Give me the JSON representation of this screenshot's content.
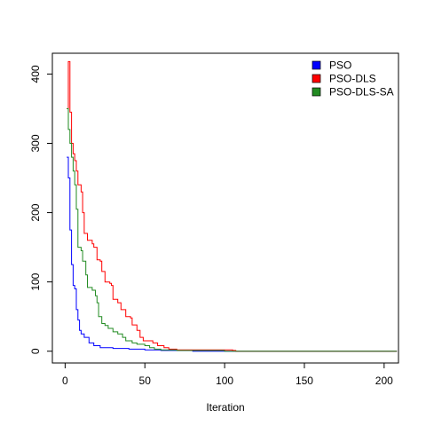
{
  "chart_data": {
    "type": "line",
    "title": "",
    "xlabel": "Iteration",
    "ylabel": "",
    "xlim": [
      -8,
      209
    ],
    "ylim": [
      -17,
      430
    ],
    "xticks": [
      0,
      50,
      100,
      150,
      200
    ],
    "yticks": [
      0,
      100,
      200,
      300,
      400
    ],
    "grid": false,
    "legend_position": "top-right",
    "series": [
      {
        "name": "PSO",
        "color": "#0000ff",
        "points": [
          [
            1,
            280
          ],
          [
            2,
            250
          ],
          [
            3,
            175
          ],
          [
            4,
            125
          ],
          [
            5,
            95
          ],
          [
            6,
            90
          ],
          [
            7,
            60
          ],
          [
            8,
            45
          ],
          [
            9,
            30
          ],
          [
            10,
            25
          ],
          [
            12,
            20
          ],
          [
            15,
            12
          ],
          [
            18,
            8
          ],
          [
            22,
            5
          ],
          [
            30,
            4
          ],
          [
            40,
            3
          ],
          [
            50,
            2
          ],
          [
            60,
            1
          ],
          [
            80,
            0
          ],
          [
            208,
            0
          ]
        ]
      },
      {
        "name": "PSO-DLS",
        "color": "#ff0000",
        "points": [
          [
            1,
            350
          ],
          [
            2,
            418
          ],
          [
            3,
            345
          ],
          [
            4,
            300
          ],
          [
            5,
            285
          ],
          [
            6,
            275
          ],
          [
            7,
            260
          ],
          [
            8,
            240
          ],
          [
            10,
            230
          ],
          [
            11,
            200
          ],
          [
            12,
            170
          ],
          [
            14,
            160
          ],
          [
            17,
            155
          ],
          [
            18,
            150
          ],
          [
            20,
            132
          ],
          [
            22,
            130
          ],
          [
            23,
            115
          ],
          [
            25,
            100
          ],
          [
            28,
            98
          ],
          [
            29,
            95
          ],
          [
            30,
            75
          ],
          [
            33,
            70
          ],
          [
            35,
            60
          ],
          [
            38,
            50
          ],
          [
            41,
            48
          ],
          [
            42,
            38
          ],
          [
            45,
            30
          ],
          [
            47,
            20
          ],
          [
            49,
            15
          ],
          [
            55,
            12
          ],
          [
            58,
            8
          ],
          [
            62,
            5
          ],
          [
            65,
            3
          ],
          [
            70,
            2
          ],
          [
            90,
            2
          ],
          [
            105,
            1
          ],
          [
            107,
            0
          ],
          [
            208,
            0
          ]
        ]
      },
      {
        "name": "PSO-DLS-SA",
        "color": "#228b22",
        "points": [
          [
            1,
            350
          ],
          [
            2,
            320
          ],
          [
            3,
            300
          ],
          [
            4,
            280
          ],
          [
            5,
            260
          ],
          [
            6,
            240
          ],
          [
            7,
            205
          ],
          [
            8,
            150
          ],
          [
            10,
            145
          ],
          [
            11,
            130
          ],
          [
            13,
            110
          ],
          [
            14,
            92
          ],
          [
            17,
            88
          ],
          [
            19,
            80
          ],
          [
            20,
            70
          ],
          [
            21,
            50
          ],
          [
            23,
            40
          ],
          [
            25,
            37
          ],
          [
            27,
            33
          ],
          [
            30,
            28
          ],
          [
            33,
            25
          ],
          [
            36,
            20
          ],
          [
            38,
            15
          ],
          [
            42,
            12
          ],
          [
            45,
            10
          ],
          [
            50,
            8
          ],
          [
            53,
            5
          ],
          [
            56,
            3
          ],
          [
            60,
            2
          ],
          [
            70,
            1
          ],
          [
            100,
            0
          ],
          [
            208,
            0
          ]
        ]
      }
    ]
  }
}
